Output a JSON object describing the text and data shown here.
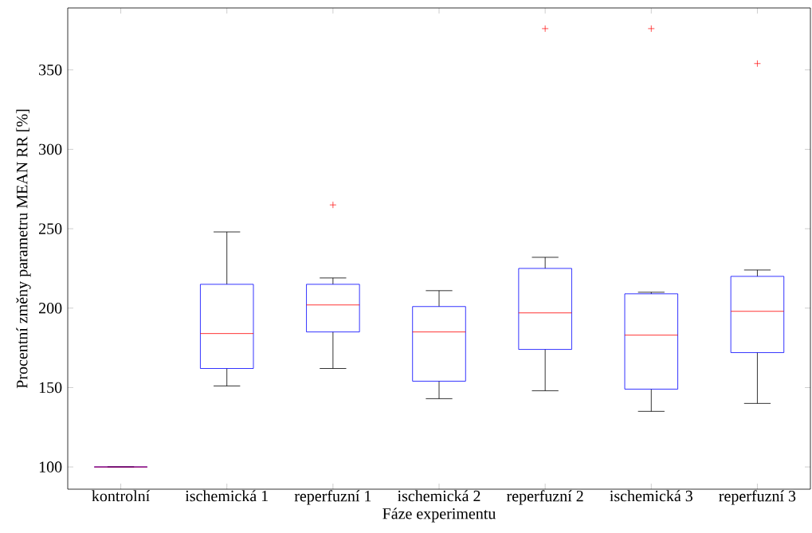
{
  "chart_data": {
    "type": "box",
    "xlabel": "Fáze experimentu",
    "ylabel": "Procentní změny parametru MEAN RR [%]",
    "categories": [
      "kontrolní",
      "ischemická 1",
      "reperfuzní 1",
      "ischemická 2",
      "reperfuzní 2",
      "ischemická 3",
      "reperfuzní 3"
    ],
    "ylim": [
      86,
      389
    ],
    "yticks": [
      100,
      150,
      200,
      250,
      300,
      350
    ],
    "series": [
      {
        "color": "#0000ff",
        "boxes": [
          {
            "low": 100,
            "q1": 100,
            "median": 100,
            "q3": 100,
            "high": 100
          },
          {
            "low": 151,
            "q1": 162,
            "median": 184,
            "q3": 215,
            "high": 248
          },
          {
            "low": 162,
            "q1": 185,
            "median": 202,
            "q3": 215,
            "high": 219,
            "outliers": [
              265
            ]
          },
          {
            "low": 143,
            "q1": 154,
            "median": 185,
            "q3": 201,
            "high": 211
          },
          {
            "low": 148,
            "q1": 174,
            "median": 197,
            "q3": 225,
            "high": 232,
            "outliers": [
              376
            ]
          },
          {
            "low": 135,
            "q1": 149,
            "median": 183,
            "q3": 209,
            "high": 210,
            "outliers": [
              376
            ]
          },
          {
            "low": 140,
            "q1": 172,
            "median": 198,
            "q3": 220,
            "high": 224,
            "outliers": [
              354
            ]
          }
        ]
      }
    ]
  }
}
